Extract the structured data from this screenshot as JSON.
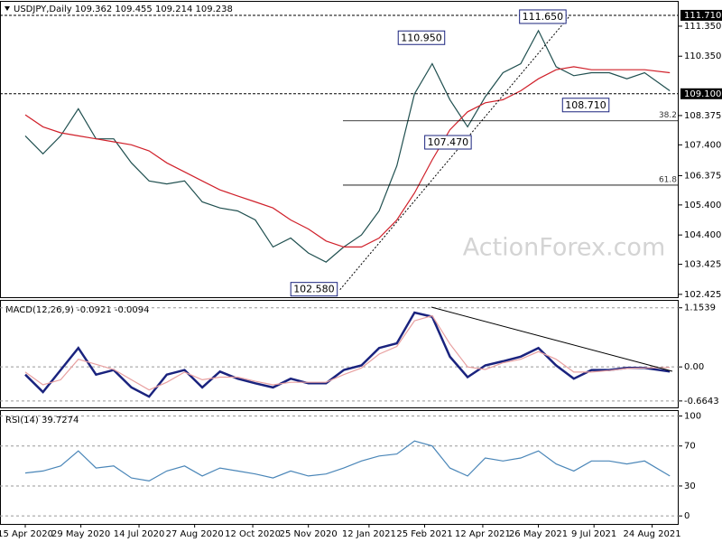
{
  "chart_data": [
    {
      "type": "line",
      "title": "USDJPY,Daily  109.362 109.455 109.214 109.238",
      "watermark": "ActionForex.com",
      "x": [
        "2020-04-15",
        "2020-04-29",
        "2020-05-13",
        "2020-05-27",
        "2020-06-10",
        "2020-06-24",
        "2020-07-08",
        "2020-07-22",
        "2020-08-05",
        "2020-08-19",
        "2020-09-02",
        "2020-09-16",
        "2020-09-30",
        "2020-10-14",
        "2020-10-28",
        "2020-11-11",
        "2020-11-25",
        "2020-12-09",
        "2020-12-23",
        "2021-01-06",
        "2021-01-20",
        "2021-02-03",
        "2021-02-17",
        "2021-03-03",
        "2021-03-17",
        "2021-03-31",
        "2021-04-14",
        "2021-04-28",
        "2021-05-12",
        "2021-05-26",
        "2021-06-09",
        "2021-06-23",
        "2021-07-07",
        "2021-07-21",
        "2021-08-04",
        "2021-08-18",
        "2021-09-07"
      ],
      "xlim": [
        "2020-03-26",
        "2021-09-14"
      ],
      "series": [
        {
          "color": "#1f4f4f",
          "values": [
            107.7,
            107.1,
            107.7,
            108.6,
            107.6,
            107.6,
            106.8,
            106.2,
            106.1,
            106.2,
            105.5,
            105.3,
            105.2,
            104.9,
            104.0,
            104.3,
            103.8,
            103.5,
            104.0,
            104.4,
            105.2,
            106.7,
            109.1,
            110.1,
            108.9,
            108.0,
            109.0,
            109.8,
            110.1,
            111.2,
            110.0,
            109.7,
            109.8,
            109.8,
            109.6,
            109.8,
            109.2
          ]
        },
        {
          "color": "#d0202a",
          "values": [
            108.4,
            108.0,
            107.8,
            107.7,
            107.6,
            107.5,
            107.4,
            107.2,
            106.8,
            106.5,
            106.2,
            105.9,
            105.7,
            105.5,
            105.3,
            104.9,
            104.6,
            104.2,
            104.0,
            104.0,
            104.3,
            104.9,
            105.8,
            106.9,
            107.9,
            108.5,
            108.8,
            108.9,
            109.2,
            109.6,
            109.9,
            110.0,
            109.9,
            109.9,
            109.9,
            109.9,
            109.8
          ]
        }
      ],
      "ylim": [
        102.3,
        112.16
      ],
      "yticks": [
        {
          "value": 111.35,
          "label": "111.350"
        },
        {
          "value": 110.35,
          "label": "110.350"
        },
        {
          "value": 108.375,
          "label": "108.375"
        },
        {
          "value": 107.4,
          "label": "107.400"
        },
        {
          "value": 106.375,
          "label": "106.375"
        },
        {
          "value": 105.4,
          "label": "105.400"
        },
        {
          "value": 104.4,
          "label": "104.400"
        },
        {
          "value": 103.425,
          "label": "103.425"
        },
        {
          "value": 102.425,
          "label": "102.425"
        }
      ],
      "hlines": [
        {
          "value": 111.71,
          "label": "111.710"
        },
        {
          "value": 109.1,
          "label": "109.100"
        }
      ],
      "fib_levels": [
        {
          "value": 108.2,
          "label": "38.2"
        },
        {
          "value": 106.06,
          "label": "61.8"
        }
      ],
      "annotations": [
        {
          "x": "2021-06-19",
          "value": 111.65,
          "label": "111.650"
        },
        {
          "x": "2021-03-15",
          "value": 110.95,
          "label": "110.950"
        },
        {
          "x": "2021-07-23",
          "value": 108.71,
          "label": "108.710"
        },
        {
          "x": "2021-04-05",
          "value": 107.47,
          "label": "107.470"
        },
        {
          "x": "2020-12-20",
          "value": 102.58,
          "label": "102.580"
        }
      ]
    },
    {
      "type": "line",
      "title": "MACD(12,26,9) -0.0921 -0.0094",
      "series": [
        {
          "color": "#1a237e",
          "values": [
            -0.15,
            -0.49,
            -0.06,
            0.37,
            -0.15,
            -0.06,
            -0.4,
            -0.58,
            -0.15,
            -0.06,
            -0.4,
            -0.09,
            -0.23,
            -0.32,
            -0.4,
            -0.23,
            -0.32,
            -0.32,
            -0.06,
            0.03,
            0.37,
            0.46,
            1.06,
            0.98,
            0.2,
            -0.2,
            0.03,
            0.11,
            0.2,
            0.37,
            0.03,
            -0.23,
            -0.06,
            -0.06,
            -0.02,
            -0.02,
            -0.09
          ]
        },
        {
          "color": "#e8a0a0",
          "values": [
            -0.1,
            -0.35,
            -0.25,
            0.15,
            0.05,
            -0.05,
            -0.25,
            -0.45,
            -0.3,
            -0.1,
            -0.25,
            -0.2,
            -0.2,
            -0.28,
            -0.35,
            -0.3,
            -0.3,
            -0.3,
            -0.15,
            -0.02,
            0.25,
            0.4,
            0.9,
            1.0,
            0.45,
            0.0,
            -0.05,
            0.08,
            0.15,
            0.3,
            0.15,
            -0.1,
            -0.1,
            -0.07,
            -0.03,
            -0.02,
            -0.01
          ]
        }
      ],
      "ylim": [
        -0.79,
        1.29
      ],
      "yticks": [
        1.1539,
        {
          "value": 0,
          "label": "0.00"
        },
        -0.6643
      ]
    },
    {
      "type": "line",
      "title": "RSI(14) 39.7274",
      "series": [
        {
          "color": "#4a86b8",
          "values": [
            43,
            45,
            50,
            65,
            48,
            50,
            38,
            35,
            45,
            50,
            40,
            48,
            45,
            42,
            38,
            45,
            40,
            42,
            48,
            55,
            60,
            62,
            75,
            70,
            48,
            40,
            58,
            55,
            58,
            65,
            52,
            45,
            55,
            55,
            52,
            55,
            40
          ]
        }
      ],
      "ylim": [
        -8,
        105
      ],
      "yticks": [
        100,
        70,
        30,
        0
      ],
      "xticks": [
        {
          "value": "2020-04-15",
          "label": "15 Apr 2020"
        },
        {
          "value": "2020-05-29",
          "label": "29 May 2020"
        },
        {
          "value": "2020-07-14",
          "label": "14 Jul 2020"
        },
        {
          "value": "2020-08-27",
          "label": "27 Aug 2020"
        },
        {
          "value": "2020-10-12",
          "label": "12 Oct 2020"
        },
        {
          "value": "2020-11-25",
          "label": "25 Nov 2020"
        },
        {
          "value": "2021-01-12",
          "label": "12 Jan 2021"
        },
        {
          "value": "2021-02-25",
          "label": "25 Feb 2021"
        },
        {
          "value": "2021-04-12",
          "label": "12 Apr 2021"
        },
        {
          "value": "2021-05-26",
          "label": "26 May 2021"
        },
        {
          "value": "2021-07-09",
          "label": "9 Jul 2021"
        },
        {
          "value": "2021-08-24",
          "label": "24 Aug 2021"
        }
      ]
    }
  ]
}
